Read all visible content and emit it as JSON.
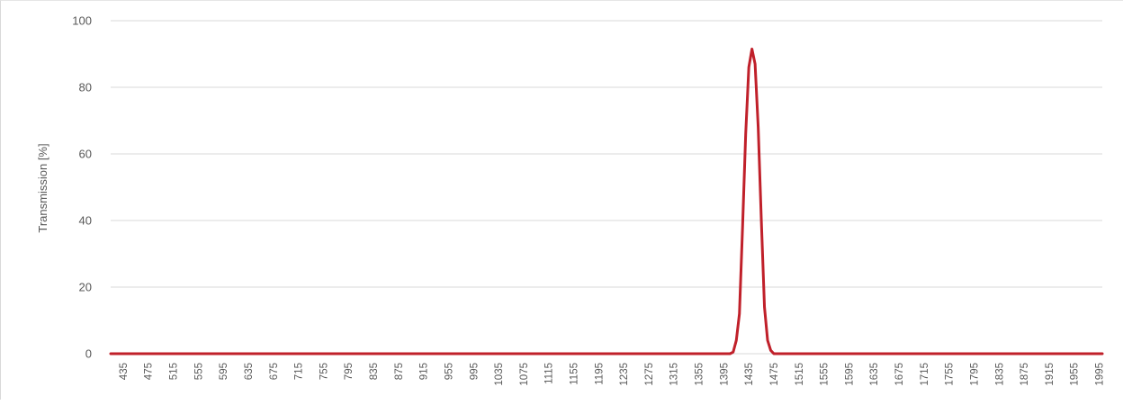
{
  "chart_data": {
    "type": "line",
    "title": "",
    "xlabel": "",
    "ylabel": "Transmission [%]",
    "ylim": [
      0,
      100
    ],
    "yticks": [
      0,
      20,
      40,
      60,
      80,
      100
    ],
    "x_category_start": 415,
    "x_category_step": 5,
    "x_category_end": 2000,
    "xtick_labels": [
      "435",
      "475",
      "515",
      "555",
      "595",
      "635",
      "675",
      "715",
      "755",
      "795",
      "835",
      "875",
      "915",
      "955",
      "995",
      "1035",
      "1075",
      "1115",
      "1155",
      "1195",
      "1235",
      "1275",
      "1315",
      "1355",
      "1395",
      "1435",
      "1475",
      "1515",
      "1555",
      "1595",
      "1635",
      "1675",
      "1715",
      "1755",
      "1795",
      "1835",
      "1875",
      "1915",
      "1955",
      "1995"
    ],
    "grid": "horizontal",
    "series": [
      {
        "color": "#c0202a",
        "points": [
          {
            "x": 415,
            "y": 0
          },
          {
            "x": 1405,
            "y": 0
          },
          {
            "x": 1410,
            "y": 0.5
          },
          {
            "x": 1415,
            "y": 4
          },
          {
            "x": 1420,
            "y": 12
          },
          {
            "x": 1425,
            "y": 38
          },
          {
            "x": 1430,
            "y": 66
          },
          {
            "x": 1435,
            "y": 86
          },
          {
            "x": 1440,
            "y": 91.5
          },
          {
            "x": 1445,
            "y": 87
          },
          {
            "x": 1450,
            "y": 68
          },
          {
            "x": 1455,
            "y": 40
          },
          {
            "x": 1460,
            "y": 14
          },
          {
            "x": 1465,
            "y": 4
          },
          {
            "x": 1470,
            "y": 1
          },
          {
            "x": 1475,
            "y": 0
          },
          {
            "x": 2000,
            "y": 0
          }
        ]
      }
    ]
  }
}
